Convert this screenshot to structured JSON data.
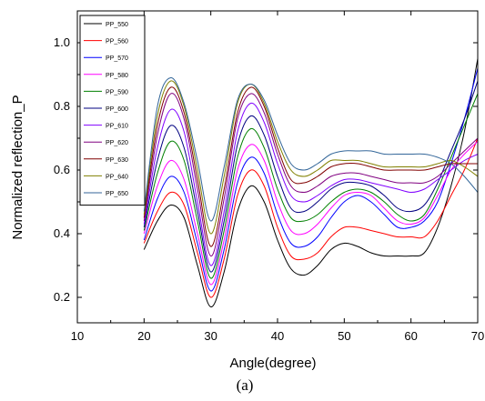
{
  "caption": "(a)",
  "chart_data": {
    "type": "line",
    "title": "",
    "xlabel": "Angle(degree)",
    "ylabel": "Normalized reflection_P",
    "xlim": [
      10,
      70
    ],
    "ylim": [
      0.12,
      1.1
    ],
    "xticks": [
      10,
      20,
      30,
      40,
      50,
      60,
      70
    ],
    "xtick_labels": [
      "10",
      "20",
      "30",
      "40",
      "50",
      "60",
      "70"
    ],
    "yticks": [
      0.2,
      0.4,
      0.6,
      0.8,
      1.0
    ],
    "ytick_labels": [
      "0.2",
      "0.4",
      "0.6",
      "0.8",
      "1.0"
    ],
    "grid": false,
    "legend_position": "top-left",
    "x": [
      20,
      22,
      24,
      26,
      28,
      30,
      32,
      34,
      36,
      38,
      40,
      42,
      44,
      46,
      48,
      50,
      52,
      54,
      56,
      58,
      60,
      62,
      64,
      66,
      68,
      70
    ],
    "series": [
      {
        "name": "PP_550",
        "color": "#000000",
        "values": [
          0.35,
          0.44,
          0.49,
          0.45,
          0.3,
          0.17,
          0.28,
          0.47,
          0.55,
          0.5,
          0.38,
          0.29,
          0.27,
          0.3,
          0.35,
          0.37,
          0.36,
          0.34,
          0.33,
          0.33,
          0.33,
          0.34,
          0.42,
          0.55,
          0.72,
          0.95
        ]
      },
      {
        "name": "PP_560",
        "color": "#ff0000",
        "values": [
          0.37,
          0.47,
          0.53,
          0.49,
          0.34,
          0.2,
          0.32,
          0.52,
          0.6,
          0.55,
          0.42,
          0.33,
          0.32,
          0.34,
          0.39,
          0.42,
          0.42,
          0.41,
          0.4,
          0.39,
          0.39,
          0.39,
          0.44,
          0.52,
          0.6,
          0.7
        ]
      },
      {
        "name": "PP_570",
        "color": "#0000ff",
        "values": [
          0.38,
          0.51,
          0.58,
          0.53,
          0.37,
          0.22,
          0.35,
          0.56,
          0.64,
          0.59,
          0.46,
          0.37,
          0.36,
          0.39,
          0.45,
          0.5,
          0.52,
          0.5,
          0.46,
          0.42,
          0.42,
          0.44,
          0.5,
          0.62,
          0.76,
          0.92
        ]
      },
      {
        "name": "PP_580",
        "color": "#ff00ff",
        "values": [
          0.4,
          0.55,
          0.63,
          0.57,
          0.4,
          0.24,
          0.38,
          0.6,
          0.68,
          0.63,
          0.5,
          0.41,
          0.4,
          0.43,
          0.48,
          0.52,
          0.53,
          0.52,
          0.48,
          0.44,
          0.43,
          0.45,
          0.52,
          0.6,
          0.65,
          0.69
        ]
      },
      {
        "name": "PP_590",
        "color": "#008000",
        "values": [
          0.41,
          0.59,
          0.69,
          0.63,
          0.44,
          0.26,
          0.41,
          0.64,
          0.73,
          0.67,
          0.54,
          0.45,
          0.44,
          0.46,
          0.5,
          0.53,
          0.54,
          0.53,
          0.5,
          0.46,
          0.44,
          0.46,
          0.54,
          0.64,
          0.74,
          0.84
        ]
      },
      {
        "name": "PP_600",
        "color": "#000080",
        "values": [
          0.42,
          0.63,
          0.74,
          0.67,
          0.47,
          0.28,
          0.44,
          0.68,
          0.77,
          0.71,
          0.58,
          0.48,
          0.47,
          0.5,
          0.54,
          0.56,
          0.56,
          0.55,
          0.52,
          0.48,
          0.47,
          0.49,
          0.56,
          0.66,
          0.76,
          0.88
        ]
      },
      {
        "name": "PP_610",
        "color": "#8000ff",
        "values": [
          0.43,
          0.67,
          0.79,
          0.72,
          0.5,
          0.3,
          0.47,
          0.72,
          0.81,
          0.75,
          0.62,
          0.52,
          0.5,
          0.52,
          0.55,
          0.57,
          0.57,
          0.56,
          0.55,
          0.54,
          0.53,
          0.54,
          0.57,
          0.6,
          0.63,
          0.65
        ]
      },
      {
        "name": "PP_620",
        "color": "#800080",
        "values": [
          0.44,
          0.71,
          0.84,
          0.76,
          0.54,
          0.33,
          0.51,
          0.76,
          0.84,
          0.78,
          0.65,
          0.55,
          0.53,
          0.55,
          0.58,
          0.59,
          0.59,
          0.58,
          0.57,
          0.56,
          0.56,
          0.56,
          0.58,
          0.62,
          0.66,
          0.7
        ]
      },
      {
        "name": "PP_630",
        "color": "#800000",
        "values": [
          0.45,
          0.74,
          0.86,
          0.78,
          0.57,
          0.36,
          0.54,
          0.78,
          0.86,
          0.8,
          0.67,
          0.57,
          0.56,
          0.58,
          0.61,
          0.62,
          0.62,
          0.61,
          0.6,
          0.6,
          0.6,
          0.6,
          0.61,
          0.62,
          0.62,
          0.62
        ]
      },
      {
        "name": "PP_640",
        "color": "#808000",
        "values": [
          0.46,
          0.77,
          0.88,
          0.8,
          0.6,
          0.4,
          0.58,
          0.81,
          0.87,
          0.81,
          0.69,
          0.6,
          0.58,
          0.6,
          0.63,
          0.63,
          0.63,
          0.62,
          0.61,
          0.61,
          0.61,
          0.61,
          0.62,
          0.63,
          0.61,
          0.58
        ]
      },
      {
        "name": "PP_650",
        "color": "#336699",
        "values": [
          0.47,
          0.8,
          0.89,
          0.81,
          0.63,
          0.44,
          0.61,
          0.82,
          0.87,
          0.82,
          0.71,
          0.62,
          0.6,
          0.62,
          0.65,
          0.66,
          0.66,
          0.66,
          0.65,
          0.65,
          0.65,
          0.65,
          0.64,
          0.62,
          0.58,
          0.53
        ]
      }
    ]
  }
}
